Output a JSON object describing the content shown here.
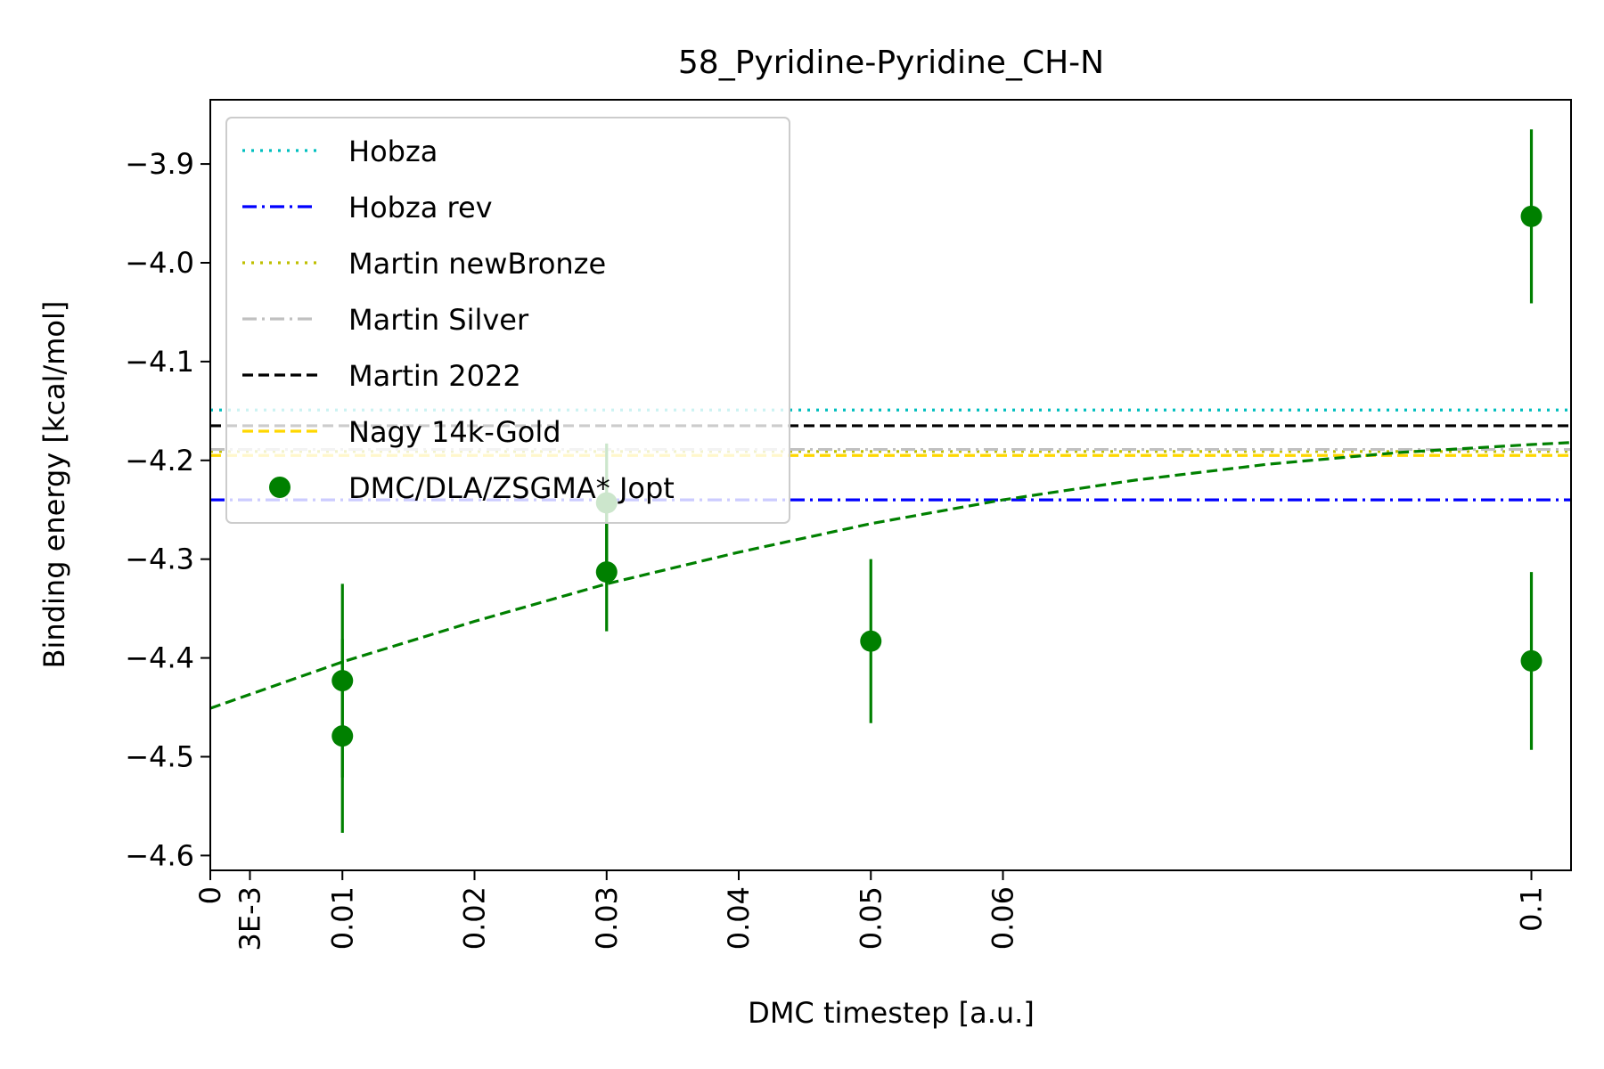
{
  "chart_data": {
    "type": "scatter",
    "title": "58_Pyridine-Pyridine_CH-N",
    "xlabel": "DMC timestep [a.u.]",
    "ylabel": "Binding energy [kcal/mol]",
    "xlim": [
      0,
      0.103
    ],
    "ylim": [
      -4.615,
      -3.835
    ],
    "x_ticks": [
      {
        "value": 0,
        "label": "0"
      },
      {
        "value": 0.003,
        "label": "3E-3"
      },
      {
        "value": 0.01,
        "label": "0.01"
      },
      {
        "value": 0.02,
        "label": "0.02"
      },
      {
        "value": 0.03,
        "label": "0.03"
      },
      {
        "value": 0.04,
        "label": "0.04"
      },
      {
        "value": 0.05,
        "label": "0.05"
      },
      {
        "value": 0.06,
        "label": "0.06"
      },
      {
        "value": 0.1,
        "label": "0.1"
      }
    ],
    "y_ticks": [
      {
        "value": -3.9,
        "label": "−3.9"
      },
      {
        "value": -4.0,
        "label": "−4.0"
      },
      {
        "value": -4.1,
        "label": "−4.1"
      },
      {
        "value": -4.2,
        "label": "−4.2"
      },
      {
        "value": -4.3,
        "label": "−4.3"
      },
      {
        "value": -4.4,
        "label": "−4.4"
      },
      {
        "value": -4.5,
        "label": "−4.5"
      },
      {
        "value": -4.6,
        "label": "−4.6"
      }
    ],
    "grid": false,
    "legend_position": "top-left",
    "reference_lines": [
      {
        "name": "Hobza",
        "y": -4.149,
        "color": "#00bfbf",
        "style": "dotted"
      },
      {
        "name": "Hobza rev",
        "y": -4.24,
        "color": "#0000ff",
        "style": "dashdot"
      },
      {
        "name": "Martin newBronze",
        "y": -4.191,
        "color": "#bfbf00",
        "style": "dotted"
      },
      {
        "name": "Martin Silver",
        "y": -4.189,
        "color": "#c0c0c0",
        "style": "dashdot"
      },
      {
        "name": "Martin 2022",
        "y": -4.165,
        "color": "#000000",
        "style": "dashed"
      },
      {
        "name": "Nagy 14k-Gold",
        "y": -4.195,
        "color": "#ffd700",
        "style": "dashed"
      }
    ],
    "series": [
      {
        "name": "DMC/DLA/ZSGMA* Jopt",
        "color": "#008000",
        "points": [
          {
            "x": 0.01,
            "y": -4.423,
            "err": 0.098
          },
          {
            "x": 0.01,
            "y": -4.479,
            "err": 0.098
          },
          {
            "x": 0.03,
            "y": -4.243,
            "err": 0.06
          },
          {
            "x": 0.03,
            "y": -4.313,
            "err": 0.06
          },
          {
            "x": 0.05,
            "y": -4.383,
            "err": 0.083
          },
          {
            "x": 0.1,
            "y": -3.953,
            "err": 0.088
          },
          {
            "x": 0.1,
            "y": -4.403,
            "err": 0.09
          }
        ]
      }
    ],
    "fit": {
      "color": "#008000",
      "style": "dashed",
      "x": [
        0,
        0.01,
        0.02,
        0.03,
        0.04,
        0.05,
        0.06,
        0.07,
        0.08,
        0.09,
        0.1,
        0.103
      ],
      "y": [
        -4.451,
        -4.404,
        -4.363,
        -4.325,
        -4.293,
        -4.264,
        -4.24,
        -4.22,
        -4.204,
        -4.192,
        -4.184,
        -4.182
      ]
    }
  }
}
